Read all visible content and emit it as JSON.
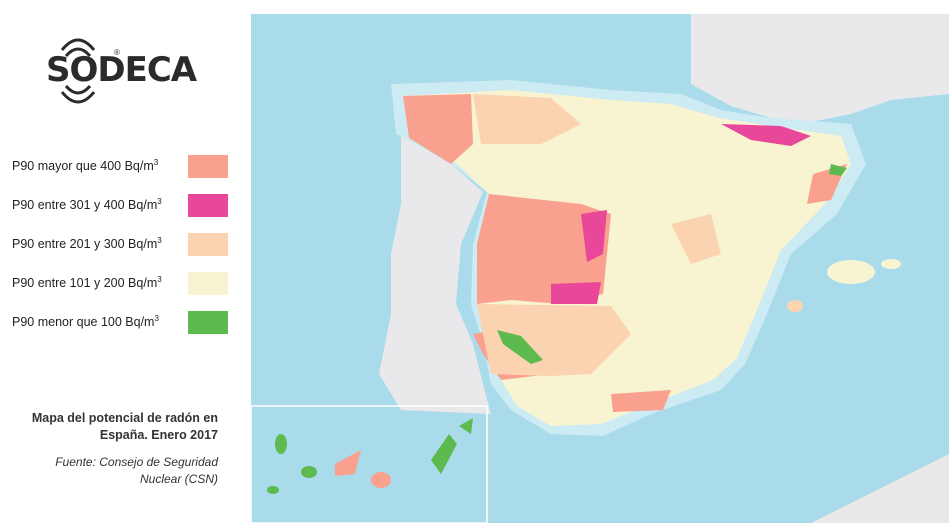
{
  "brand": {
    "name": "SODECA",
    "reg": "®"
  },
  "legend": {
    "items": [
      {
        "label": "P90 mayor que 400 Bq/m",
        "sup": "3",
        "color": "#f9a08f"
      },
      {
        "label": "P90 entre 301 y 400 Bq/m",
        "sup": "3",
        "color": "#e8479a"
      },
      {
        "label": "P90 entre 201 y 300 Bq/m",
        "sup": "3",
        "color": "#fbd3b0"
      },
      {
        "label": "P90 entre 101 y 200 Bq/m",
        "sup": "3",
        "color": "#f8f4d2"
      },
      {
        "label": "P90 menor que 100 Bq/m",
        "sup": "3",
        "color": "#5cba4f"
      }
    ]
  },
  "caption": {
    "title_line1": "Mapa del potencial de radón en",
    "title_line2": "España. Enero 2017",
    "source_line1": "Fuente: Consejo de Seguridad",
    "source_line2": "Nuclear (CSN)"
  },
  "map": {
    "colors": {
      "sea_deep": "#a9dbea",
      "sea_shallow": "#cdebf3",
      "land_foreign": "#e9e9ec",
      "spain_base": "#f8f4d2"
    }
  }
}
